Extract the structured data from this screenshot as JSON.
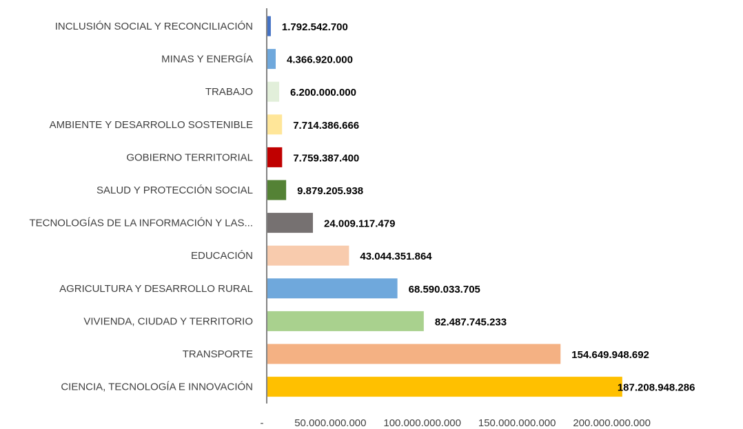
{
  "chart_data": {
    "type": "bar",
    "orientation": "horizontal",
    "title": "",
    "xlabel": "",
    "ylabel": "",
    "xlim": [
      0,
      200000000000
    ],
    "grid": false,
    "legend": "none",
    "categories": [
      "INCLUSIÓN SOCIAL Y RECONCILIACIÓN",
      "MINAS Y ENERGÍA",
      "TRABAJO",
      "AMBIENTE Y DESARROLLO SOSTENIBLE",
      "GOBIERNO TERRITORIAL",
      "SALUD Y PROTECCIÓN SOCIAL",
      "TECNOLOGÍAS DE LA INFORMACIÓN Y LAS...",
      "EDUCACIÓN",
      "AGRICULTURA Y DESARROLLO RURAL",
      "VIVIENDA, CIUDAD Y TERRITORIO",
      "TRANSPORTE",
      "CIENCIA, TECNOLOGÍA E INNOVACIÓN"
    ],
    "values": [
      1792542700,
      4366920000,
      6200000000,
      7714386666,
      7759387400,
      9879205938,
      24009117479,
      43044351864,
      68590033705,
      82487745233,
      154649948692,
      187208948286
    ],
    "value_labels": [
      "1.792.542.700",
      "4.366.920.000",
      "6.200.000.000",
      "7.714.386.666",
      "7.759.387.400",
      "9.879.205.938",
      "24.009.117.479",
      "43.044.351.864",
      "68.590.033.705",
      "82.487.745.233",
      "154.649.948.692",
      "187.208.948.286"
    ],
    "colors": [
      "#4472c4",
      "#6fa8dc",
      "#e2efda",
      "#ffe699",
      "#c00000",
      "#548235",
      "#767171",
      "#f8cbad",
      "#6fa8dc",
      "#a9d18e",
      "#f4b183",
      "#ffc000"
    ],
    "x_ticks": [
      0,
      50000000000,
      100000000000,
      150000000000,
      200000000000
    ],
    "x_tick_labels": [
      "-",
      "50.000.000.000",
      "100.000.000.000",
      "150.000.000.000",
      "200.000.000.000"
    ]
  }
}
